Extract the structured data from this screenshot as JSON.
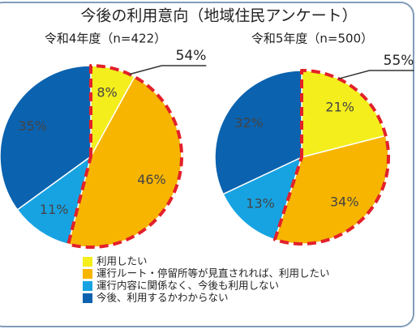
{
  "title": "今後の利用意向（地域住民アンケート）",
  "legend": {
    "labels": [
      "利用したい",
      "運行ルート・停留所等が見直されれば、利用したい",
      "運行内容に関係なく、今後も利用しない",
      "今後、利用するかわからない"
    ],
    "colors": [
      "#f4ee1c",
      "#f7b500",
      "#17a3e2",
      "#0b62ae"
    ]
  },
  "chart_data": [
    {
      "type": "pie",
      "subtitle": "令和4年度（n=422）",
      "values": [
        8,
        46,
        11,
        35
      ],
      "value_labels": [
        "8%",
        "46%",
        "11%",
        "35%"
      ],
      "highlight": {
        "value": 54,
        "label": "54%"
      }
    },
    {
      "type": "pie",
      "subtitle": "令和5年度（n=500）",
      "values": [
        21,
        34,
        13,
        32
      ],
      "value_labels": [
        "21%",
        "34%",
        "13%",
        "32%"
      ],
      "highlight": {
        "value": 55,
        "label": "55%"
      }
    }
  ]
}
